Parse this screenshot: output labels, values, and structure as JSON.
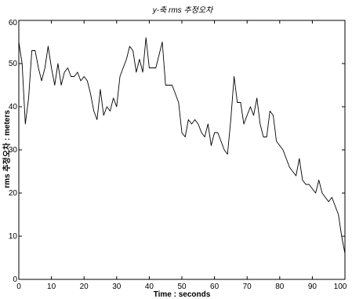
{
  "chart_data": {
    "type": "line",
    "title": "y-축 rms 추정오차",
    "xlabel": "Time : seconds",
    "ylabel": "rms 추정오차 : meters",
    "xlim": [
      0,
      100
    ],
    "ylim": [
      0,
      60
    ],
    "xticks": [
      0,
      10,
      20,
      30,
      40,
      50,
      60,
      70,
      80,
      90,
      100
    ],
    "yticks": [
      0,
      10,
      20,
      30,
      40,
      50,
      60
    ],
    "xtick_labels": [
      "0",
      "10",
      "20",
      "30",
      "40",
      "50",
      "60",
      "70",
      "80",
      "90",
      "100"
    ],
    "ytick_labels": [
      "0",
      "10",
      "20",
      "30",
      "40",
      "50",
      "60"
    ],
    "grid": false,
    "series": [
      {
        "x": [
          0,
          1,
          2,
          3,
          4,
          5,
          6,
          7,
          8,
          9,
          10,
          11,
          12,
          13,
          14,
          15,
          16,
          17,
          18,
          19,
          20,
          21,
          22,
          23,
          24,
          25,
          26,
          27,
          28,
          29,
          30,
          31,
          32,
          33,
          34,
          35,
          36,
          37,
          38,
          39,
          40,
          41,
          42,
          43,
          44,
          45,
          46,
          47,
          48,
          49,
          50,
          51,
          52,
          53,
          54,
          55,
          56,
          57,
          58,
          59,
          60,
          61,
          62,
          63,
          64,
          65,
          66,
          67,
          68,
          69,
          70,
          71,
          72,
          73,
          74,
          75,
          76,
          77,
          78,
          79,
          80,
          81,
          82,
          83,
          84,
          85,
          86,
          87,
          88,
          89,
          90,
          91,
          92,
          93,
          94,
          95,
          96,
          97,
          98,
          99,
          100
        ],
        "values": [
          55,
          50,
          36,
          42,
          53,
          53,
          49,
          46,
          49,
          54,
          49,
          45,
          50,
          45,
          48,
          49,
          47,
          47,
          48,
          46,
          47,
          46,
          43,
          39,
          37,
          44,
          38,
          40,
          39,
          42,
          40,
          47,
          49,
          51,
          54,
          53,
          48,
          51,
          48,
          56,
          49,
          49,
          49,
          52,
          55,
          45,
          45,
          45,
          43,
          41,
          34,
          33,
          37,
          36,
          37,
          36,
          34,
          33,
          36,
          31,
          34,
          34,
          32,
          30,
          29,
          37,
          47,
          41,
          41,
          36,
          38,
          40,
          38,
          42,
          36,
          33,
          33,
          39,
          38,
          32,
          31,
          30,
          28,
          26,
          25,
          24,
          28,
          23,
          22,
          22,
          21,
          20,
          23,
          20,
          19,
          18,
          19,
          17,
          15,
          10,
          6
        ]
      }
    ]
  }
}
